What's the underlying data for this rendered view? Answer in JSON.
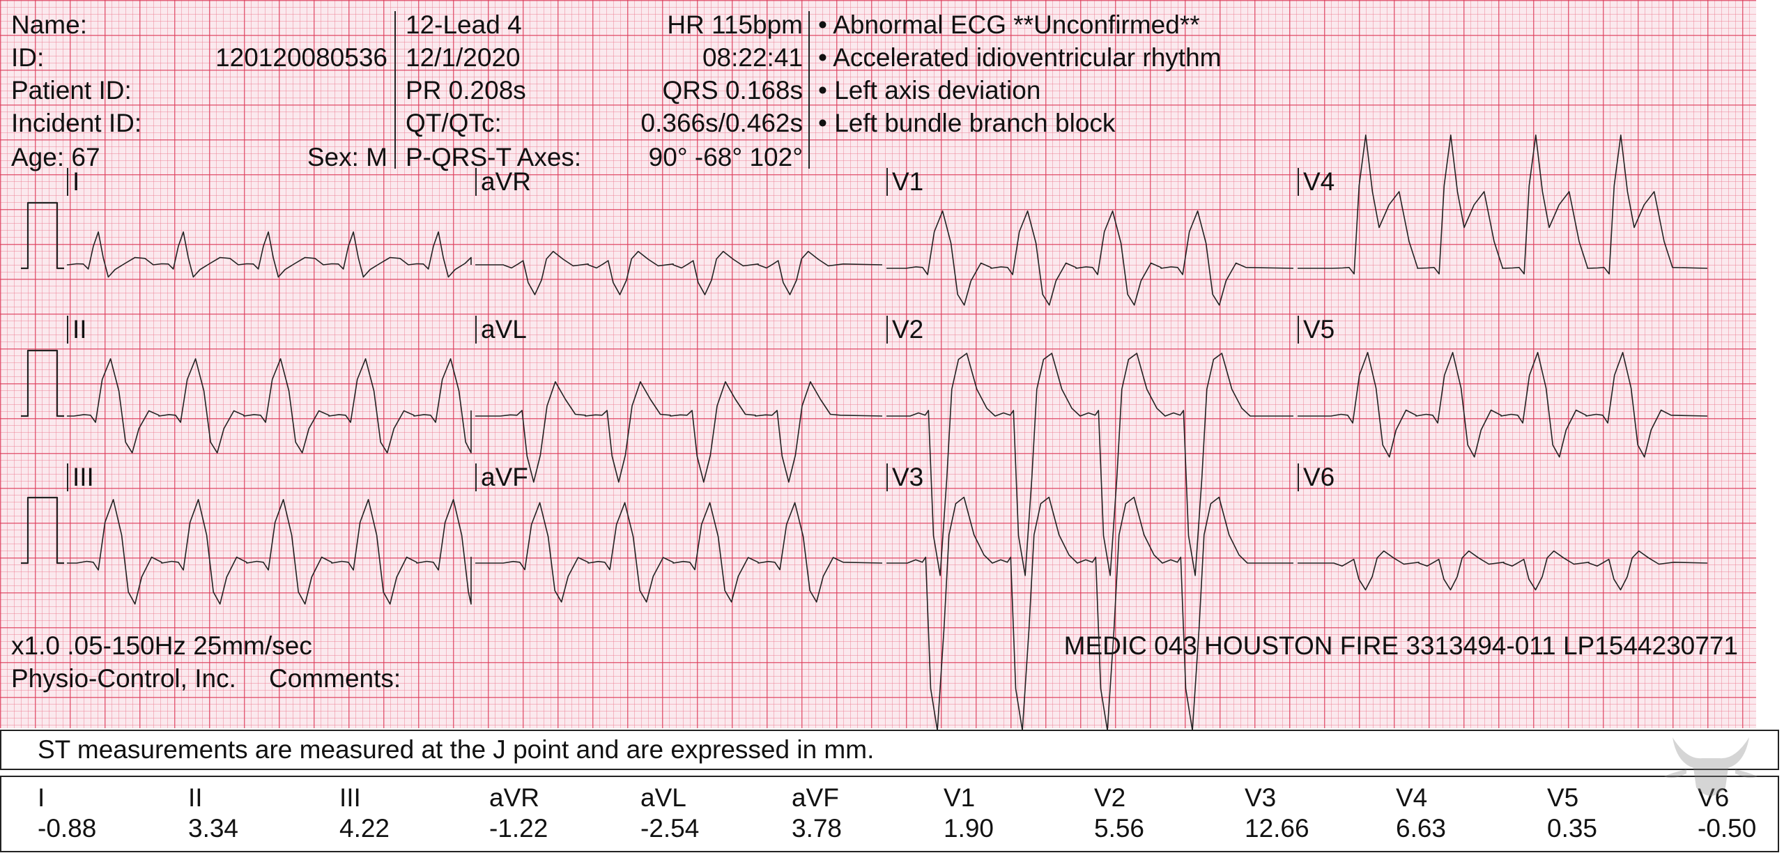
{
  "header": {
    "name_label": "Name:",
    "id_label": "ID:",
    "id_value": "120120080536",
    "patient_id_label": "Patient ID:",
    "incident_id_label": "Incident ID:",
    "age": "Age: 67",
    "sex": "Sex: M",
    "device": "12-Lead 4",
    "date": "12/1/2020",
    "pr": "PR 0.208s",
    "qt_label": "QT/QTc:",
    "axes_label": "P-QRS-T Axes:",
    "hr": "HR 115bpm",
    "time": "08:22:41",
    "qrs": "QRS 0.168s",
    "qt_value": "0.366s/0.462s",
    "axes_value": "90° -68° 102°"
  },
  "interpretation": [
    "• Abnormal ECG **Unconfirmed**",
    "• Accelerated idioventricular rhythm",
    "• Left axis deviation",
    "• Left bundle branch block"
  ],
  "leads": {
    "i": "I",
    "ii": "II",
    "iii": "III",
    "avr": "aVR",
    "avl": "aVL",
    "avf": "aVF",
    "v1": "V1",
    "v2": "V2",
    "v3": "V3",
    "v4": "V4",
    "v5": "V5",
    "v6": "V6"
  },
  "footer": {
    "settings": "x1.0 .05-150Hz 25mm/sec",
    "manufacturer": "Physio-Control, Inc.",
    "comments_label": "Comments:",
    "medic": "MEDIC 043 HOUSTON FIRE 3313494-011 LP1544230771"
  },
  "st": {
    "note": "ST measurements are measured at the J point and are expressed in mm.",
    "measurements": [
      {
        "lead": "I",
        "value": "-0.88"
      },
      {
        "lead": "II",
        "value": "3.34"
      },
      {
        "lead": "III",
        "value": "4.22"
      },
      {
        "lead": "aVR",
        "value": "-1.22"
      },
      {
        "lead": "aVL",
        "value": "-2.54"
      },
      {
        "lead": "aVF",
        "value": "3.78"
      },
      {
        "lead": "V1",
        "value": "1.90"
      },
      {
        "lead": "V2",
        "value": "5.56"
      },
      {
        "lead": "V3",
        "value": "12.66"
      },
      {
        "lead": "V4",
        "value": "6.63"
      },
      {
        "lead": "V5",
        "value": "0.35"
      },
      {
        "lead": "V6",
        "value": "-0.50"
      }
    ]
  },
  "colors": {
    "grid_major": "#dc3c5a",
    "grid_minor": "#eb788c",
    "paper": "#fbe9ee",
    "trace": "#222222"
  }
}
